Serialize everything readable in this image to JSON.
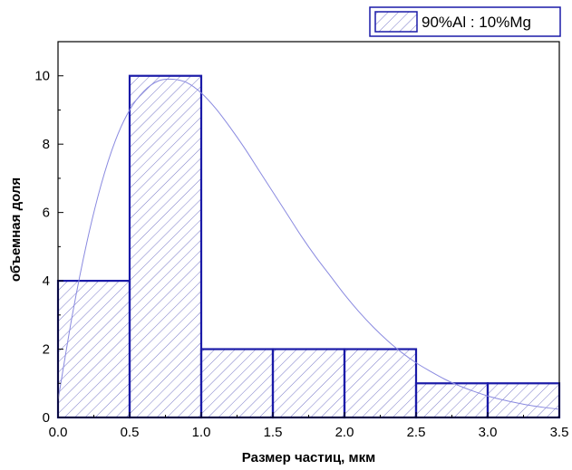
{
  "chart_data": {
    "type": "bar",
    "subtype": "histogram",
    "xlabel": "Размер частиц, мкм",
    "ylabel": "объемная доля",
    "xlim": [
      0,
      3.5
    ],
    "ylim": [
      0,
      11
    ],
    "xticks": [
      0.0,
      0.5,
      1.0,
      1.5,
      2.0,
      2.5,
      3.0,
      3.5
    ],
    "xtick_labels": [
      "0.0",
      "0.5",
      "1.0",
      "1.5",
      "2.0",
      "2.5",
      "3.0",
      "3.5"
    ],
    "yticks": [
      0,
      2,
      4,
      6,
      8,
      10
    ],
    "ytick_labels": [
      "0",
      "2",
      "4",
      "6",
      "8",
      "10"
    ],
    "grid": false,
    "legend_position": "top-right",
    "series": [
      {
        "name": "90%Al : 10%Mg",
        "bins": [
          {
            "x0": 0.0,
            "x1": 0.5,
            "value": 4
          },
          {
            "x0": 0.5,
            "x1": 1.0,
            "value": 10
          },
          {
            "x0": 1.0,
            "x1": 1.5,
            "value": 2
          },
          {
            "x0": 1.5,
            "x1": 2.0,
            "value": 2
          },
          {
            "x0": 2.0,
            "x1": 2.5,
            "value": 2
          },
          {
            "x0": 2.5,
            "x1": 3.0,
            "value": 1
          },
          {
            "x0": 3.0,
            "x1": 3.5,
            "value": 1
          }
        ]
      }
    ],
    "fit_curve": {
      "points": [
        [
          0.0,
          0.5
        ],
        [
          0.1,
          3.0
        ],
        [
          0.2,
          5.1
        ],
        [
          0.3,
          6.8
        ],
        [
          0.4,
          8.1
        ],
        [
          0.5,
          9.0
        ],
        [
          0.6,
          9.55
        ],
        [
          0.7,
          9.85
        ],
        [
          0.8,
          9.9
        ],
        [
          0.9,
          9.8
        ],
        [
          1.0,
          9.5
        ],
        [
          1.1,
          9.05
        ],
        [
          1.2,
          8.5
        ],
        [
          1.3,
          7.9
        ],
        [
          1.4,
          7.25
        ],
        [
          1.5,
          6.6
        ],
        [
          1.6,
          5.95
        ],
        [
          1.7,
          5.3
        ],
        [
          1.8,
          4.7
        ],
        [
          1.9,
          4.15
        ],
        [
          2.0,
          3.6
        ],
        [
          2.1,
          3.1
        ],
        [
          2.2,
          2.65
        ],
        [
          2.3,
          2.25
        ],
        [
          2.4,
          1.9
        ],
        [
          2.5,
          1.6
        ],
        [
          2.6,
          1.35
        ],
        [
          2.7,
          1.12
        ],
        [
          2.8,
          0.93
        ],
        [
          2.9,
          0.77
        ],
        [
          3.0,
          0.63
        ],
        [
          3.1,
          0.52
        ],
        [
          3.2,
          0.43
        ],
        [
          3.3,
          0.35
        ],
        [
          3.4,
          0.29
        ],
        [
          3.5,
          0.24
        ]
      ]
    },
    "colors": {
      "bar_edge": "#1a1aa8",
      "hatch": "#7a7ac8",
      "curve": "#8a8ae0",
      "axis": "#000000"
    }
  }
}
